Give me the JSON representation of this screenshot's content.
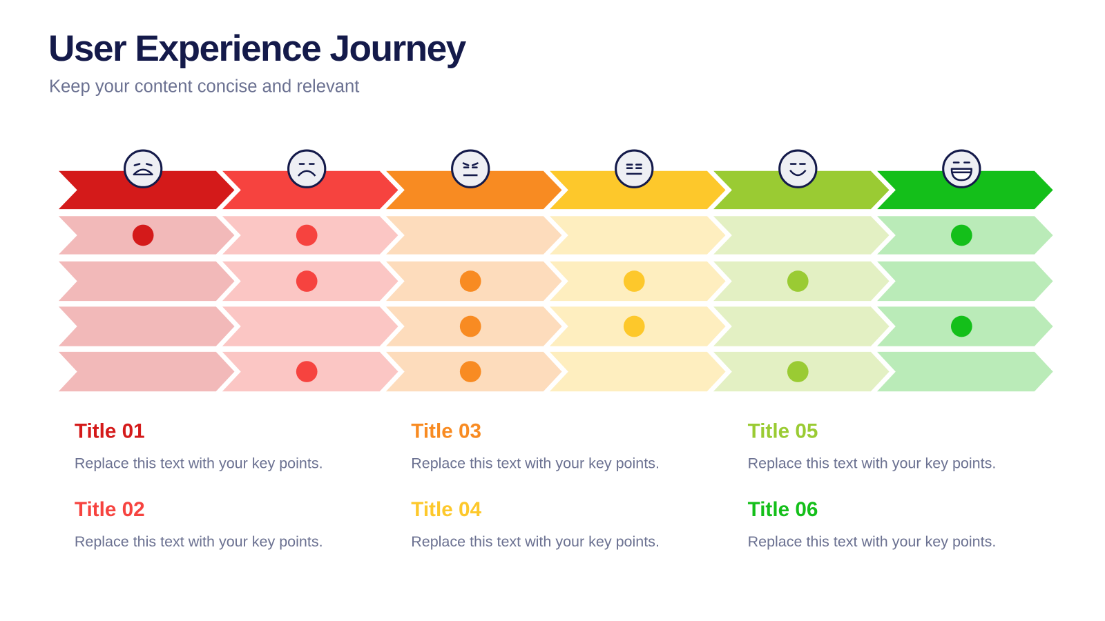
{
  "header": {
    "title": "User Experience Journey",
    "subtitle": "Keep your content concise and relevant"
  },
  "stages": [
    {
      "title": "Title 01",
      "text": "Replace this text with your key points.",
      "color": "#d41a1a",
      "light": "#f2b9b9"
    },
    {
      "title": "Title 02",
      "text": "Replace this text with your key points.",
      "color": "#f6433f",
      "light": "#fbc6c4"
    },
    {
      "title": "Title 03",
      "text": "Replace this text with your key points.",
      "color": "#f88b22",
      "light": "#fddcbc"
    },
    {
      "title": "Title 04",
      "text": "Replace this text with your key points.",
      "color": "#fdc82b",
      "light": "#feeebf"
    },
    {
      "title": "Title 05",
      "text": "Replace this text with your key points.",
      "color": "#9acb33",
      "light": "#e3f0c3"
    },
    {
      "title": "Title 06",
      "text": "Replace this text with your key points.",
      "color": "#14bf1a",
      "light": "#baebb8"
    }
  ]
}
